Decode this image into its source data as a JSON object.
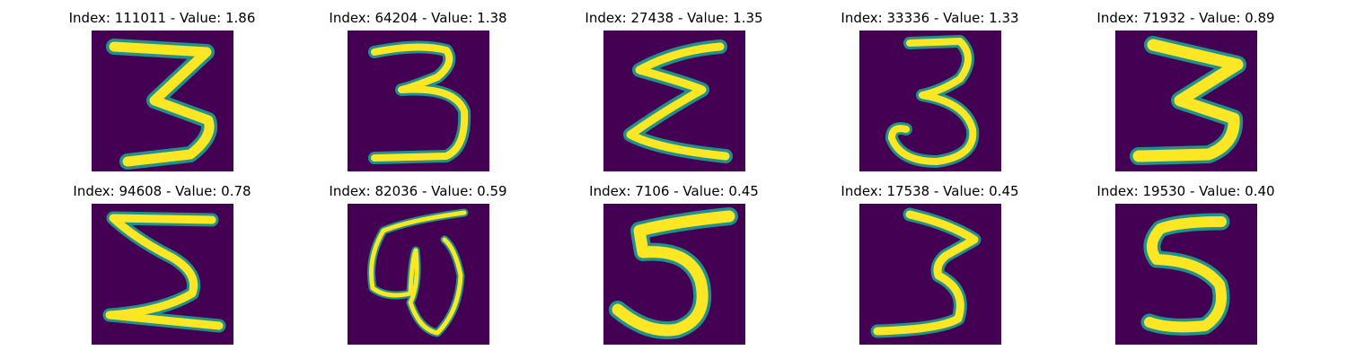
{
  "colors": {
    "background_pixel": "#440154",
    "stroke_core": "#fde725",
    "stroke_mid": "#b5de2b",
    "stroke_edge": "#21918c",
    "page": "#ffffff"
  },
  "panels": [
    {
      "index": "111011",
      "value": "1.86",
      "title": "Index: 111011 - Value: 1.86",
      "glyph": "3"
    },
    {
      "index": "64204",
      "value": "1.38",
      "title": "Index: 64204 - Value: 1.38",
      "glyph": "3"
    },
    {
      "index": "27438",
      "value": "1.35",
      "title": "Index: 27438 - Value: 1.35",
      "glyph": "sigma"
    },
    {
      "index": "33336",
      "value": "1.33",
      "title": "Index: 33336 - Value: 1.33",
      "glyph": "3"
    },
    {
      "index": "71932",
      "value": "0.89",
      "title": "Index: 71932 - Value: 0.89",
      "glyph": "3"
    },
    {
      "index": "94608",
      "value": "0.78",
      "title": "Index: 94608 - Value: 0.78",
      "glyph": "sigma"
    },
    {
      "index": "82036",
      "value": "0.59",
      "title": "Index: 82036 - Value: 0.59",
      "glyph": "loop"
    },
    {
      "index": "7106",
      "value": "0.45",
      "title": "Index: 7106 - Value: 0.45",
      "glyph": "5"
    },
    {
      "index": "17538",
      "value": "0.45",
      "title": "Index: 17538 - Value: 0.45",
      "glyph": "3"
    },
    {
      "index": "19530",
      "value": "0.40",
      "title": "Index: 19530 - Value: 0.40",
      "glyph": "5"
    }
  ]
}
